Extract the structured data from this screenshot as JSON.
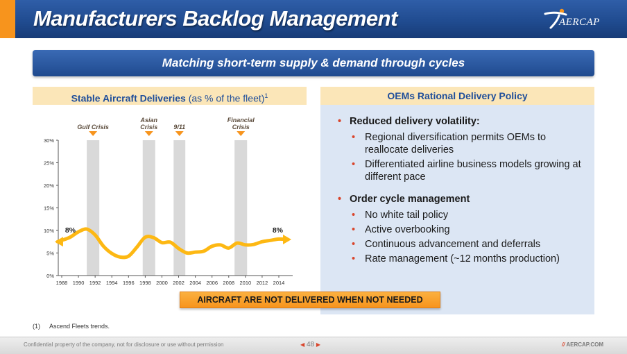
{
  "header": {
    "title": "Manufacturers Backlog Management",
    "logo_text": "AERCAP"
  },
  "banner": {
    "text": "Matching short-term supply & demand through cycles"
  },
  "left_panel": {
    "title_bold": "Stable Aircraft Deliveries",
    "title_rest": "(as % of the fleet)",
    "title_sup": "1"
  },
  "right_panel": {
    "title": "OEMs Rational Delivery Policy",
    "sections": [
      {
        "heading": "Reduced delivery volatility:",
        "items": [
          "Regional diversification permits OEMs to reallocate deliveries",
          "Differentiated airline business models growing at different pace"
        ]
      },
      {
        "heading": "Order cycle management",
        "items": [
          "No white tail policy",
          "Active overbooking",
          "Continuous advancement and deferrals",
          "Rate management (~12 months production)"
        ]
      }
    ]
  },
  "callout": {
    "text": "AIRCRAFT ARE NOT DELIVERED WHEN NOT NEEDED"
  },
  "footnote": {
    "num": "(1)",
    "text": "Ascend Fleets trends."
  },
  "footer": {
    "confidential": "Confidential property of the company, not for disclosure or use without permission",
    "page": "48",
    "website_mark": "//",
    "website": "AERCAP.COM"
  },
  "colors": {
    "navy": "#1f4a8e",
    "orange": "#f7941d",
    "line_yellow": "#fdb813",
    "crisis_band": "#d9d9d9"
  },
  "chart_data": {
    "type": "line",
    "title": "",
    "xlabel": "",
    "ylabel": "",
    "x_ticks": [
      "1988",
      "1990",
      "1992",
      "1994",
      "1996",
      "1998",
      "2000",
      "2002",
      "2004",
      "2006",
      "2008",
      "2010",
      "2012",
      "2014"
    ],
    "y_ticks": [
      "0%",
      "5%",
      "10%",
      "15%",
      "20%",
      "25%",
      "30%"
    ],
    "ylim": [
      0,
      30
    ],
    "xlim": [
      1988,
      2015
    ],
    "series": [
      {
        "x": [
          1987.5,
          1988,
          1989,
          1990,
          1991,
          1992,
          1993,
          1994,
          1995,
          1996,
          1997,
          1998,
          1999,
          2000,
          2001,
          2002,
          2003,
          2004,
          2005,
          2006,
          2007,
          2008,
          2009,
          2010,
          2011,
          2012,
          2013,
          2014,
          2015
        ],
        "values": [
          7.5,
          7.8,
          8.5,
          9.7,
          10.3,
          9.0,
          6.5,
          4.9,
          4.1,
          4.3,
          6.3,
          8.5,
          8.4,
          7.3,
          7.4,
          6.0,
          5.0,
          5.2,
          5.4,
          6.5,
          6.8,
          6.1,
          7.2,
          6.8,
          6.9,
          7.5,
          7.8,
          8.1,
          8.0
        ]
      }
    ],
    "crisis_bands": [
      {
        "label": "Gulf Crisis",
        "from": 1991,
        "to": 1992.5
      },
      {
        "label": "Asian Crisis",
        "from": 1997.7,
        "to": 1999.2
      },
      {
        "label": "9/11",
        "from": 2001.4,
        "to": 2002.8
      },
      {
        "label": "Financial Crisis",
        "from": 2008.7,
        "to": 2010.2
      }
    ],
    "annotations": [
      {
        "label": "8%",
        "x": 1988.4,
        "y": 8
      },
      {
        "label": "8%",
        "x": 2014.5,
        "y": 8
      }
    ],
    "grid": false
  }
}
